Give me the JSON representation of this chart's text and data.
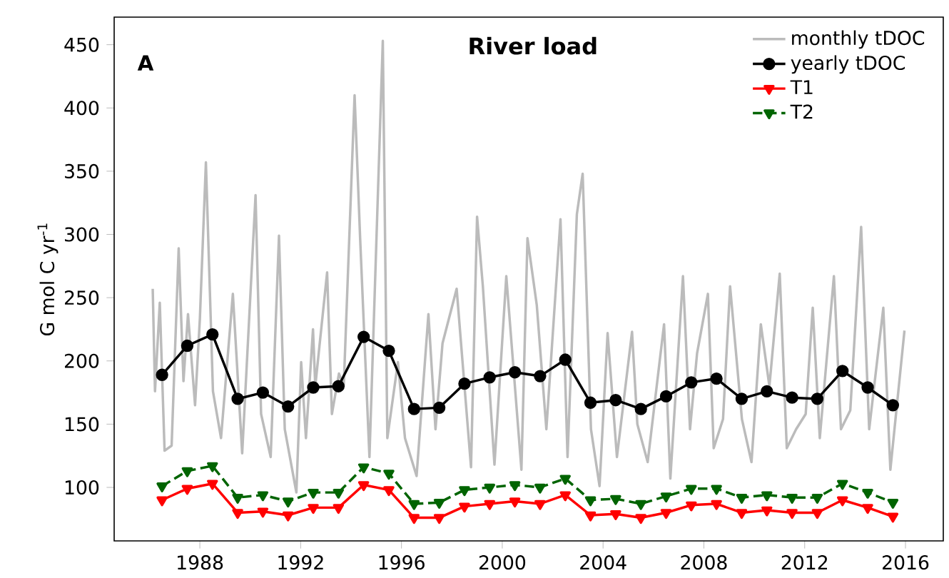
{
  "chart_data": {
    "type": "line",
    "title": "River load",
    "ylabel": "G mol C yr$^{-1}$",
    "annotations": [
      "**A**"
    ],
    "xlim": [
      1984.6,
      2017.5
    ],
    "ylim": [
      57.7,
      471.8
    ],
    "xticks": [
      1988,
      1992,
      1996,
      2000,
      2004,
      2008,
      2012,
      2016
    ],
    "yticks": [
      100,
      150,
      200,
      250,
      300,
      350,
      400,
      450
    ],
    "legend": "top right",
    "grid": false,
    "series": [
      {
        "name": "monthly tDOC",
        "color": "#bbbbbb",
        "marker": "none",
        "line_style": "solid",
        "x": [
          1986.13,
          1986.22,
          1986.41,
          1986.6,
          1986.88,
          1987.16,
          1987.35,
          1987.53,
          1987.81,
          1988.0,
          1988.24,
          1988.52,
          1988.84,
          1989.31,
          1989.68,
          1990.21,
          1990.43,
          1990.81,
          1991.14,
          1991.37,
          1991.83,
          1992.02,
          1992.21,
          1992.49,
          1992.58,
          1993.05,
          1993.24,
          1993.52,
          1993.71,
          1994.14,
          1994.36,
          1994.73,
          1995.26,
          1995.44,
          1995.86,
          1996.14,
          1996.6,
          1997.07,
          1997.35,
          1997.63,
          1998.19,
          1998.76,
          1999.0,
          1999.23,
          1999.69,
          2000.16,
          2000.76,
          2001.0,
          2001.37,
          2001.75,
          2002.31,
          2002.59,
          2002.96,
          2003.19,
          2003.52,
          2003.86,
          2004.18,
          2004.55,
          2005.15,
          2005.36,
          2005.77,
          2006.42,
          2006.67,
          2007.17,
          2007.45,
          2007.73,
          2008.16,
          2008.39,
          2008.76,
          2009.04,
          2009.51,
          2009.89,
          2010.26,
          2010.6,
          2011.01,
          2011.29,
          2011.66,
          2012.04,
          2012.32,
          2012.6,
          2013.16,
          2013.44,
          2013.81,
          2014.24,
          2014.56,
          2015.12,
          2015.4,
          2015.96
        ],
        "values": [
          257,
          176,
          246,
          129,
          133,
          289,
          184,
          237,
          165,
          233,
          357,
          176,
          139,
          253,
          127,
          331,
          158,
          124,
          299,
          146,
          96,
          199,
          139,
          225,
          180,
          270,
          158,
          190,
          180,
          410,
          297,
          124,
          453,
          139,
          199,
          139,
          109,
          237,
          146,
          214,
          257,
          116,
          314,
          259,
          118,
          267,
          114,
          297,
          244,
          146,
          312,
          124,
          316,
          348,
          146,
          101,
          222,
          124,
          223,
          150,
          120,
          229,
          107,
          267,
          146,
          206,
          253,
          131,
          154,
          259,
          154,
          120,
          229,
          180,
          269,
          131,
          146,
          158,
          242,
          139,
          267,
          146,
          161,
          306,
          146,
          242,
          114,
          224
        ]
      },
      {
        "name": "yearly tDOC",
        "color": "#000000",
        "marker": "circle",
        "line_style": "solid",
        "x": [
          1986.5,
          1987.5,
          1988.5,
          1989.5,
          1990.5,
          1991.5,
          1992.5,
          1993.5,
          1994.5,
          1995.5,
          1996.5,
          1997.5,
          1998.5,
          1999.5,
          2000.5,
          2001.5,
          2002.5,
          2003.5,
          2004.5,
          2005.5,
          2006.5,
          2007.5,
          2008.5,
          2009.5,
          2010.5,
          2011.5,
          2012.5,
          2013.5,
          2014.5,
          2015.5
        ],
        "values": [
          189,
          212,
          221,
          170,
          175,
          164,
          179,
          180,
          219,
          208,
          162,
          163,
          182,
          187,
          191,
          188,
          201,
          167,
          169,
          162,
          172,
          183,
          186,
          170,
          176,
          171,
          170,
          192,
          179,
          165
        ]
      },
      {
        "name": "T1",
        "color": "#ff0000",
        "marker": "triangle",
        "line_style": "solid",
        "x": [
          1986.5,
          1987.5,
          1988.5,
          1989.5,
          1990.5,
          1991.5,
          1992.5,
          1993.5,
          1994.5,
          1995.5,
          1996.5,
          1997.5,
          1998.5,
          1999.5,
          2000.5,
          2001.5,
          2002.5,
          2003.5,
          2004.5,
          2005.5,
          2006.5,
          2007.5,
          2008.5,
          2009.5,
          2010.5,
          2011.5,
          2012.5,
          2013.5,
          2014.5,
          2015.5
        ],
        "values": [
          90,
          99,
          103,
          80,
          81,
          78,
          84,
          84,
          102,
          98,
          76,
          76,
          85,
          87,
          89,
          87,
          94,
          78,
          79,
          76,
          80,
          86,
          87,
          80,
          82,
          80,
          80,
          90,
          84,
          77
        ]
      },
      {
        "name": "T2",
        "color": "#006400",
        "marker": "triangle",
        "line_style": "dashed",
        "x": [
          1986.5,
          1987.5,
          1988.5,
          1989.5,
          1990.5,
          1991.5,
          1992.5,
          1993.5,
          1994.5,
          1995.5,
          1996.5,
          1997.5,
          1998.5,
          1999.5,
          2000.5,
          2001.5,
          2002.5,
          2003.5,
          2004.5,
          2005.5,
          2006.5,
          2007.5,
          2008.5,
          2009.5,
          2010.5,
          2011.5,
          2012.5,
          2013.5,
          2014.5,
          2015.5
        ],
        "values": [
          101,
          113,
          117,
          92,
          94,
          89,
          96,
          96,
          116,
          111,
          87,
          88,
          98,
          100,
          102,
          100,
          107,
          90,
          91,
          87,
          93,
          99,
          99,
          92,
          94,
          92,
          92,
          103,
          96,
          88
        ]
      }
    ]
  }
}
